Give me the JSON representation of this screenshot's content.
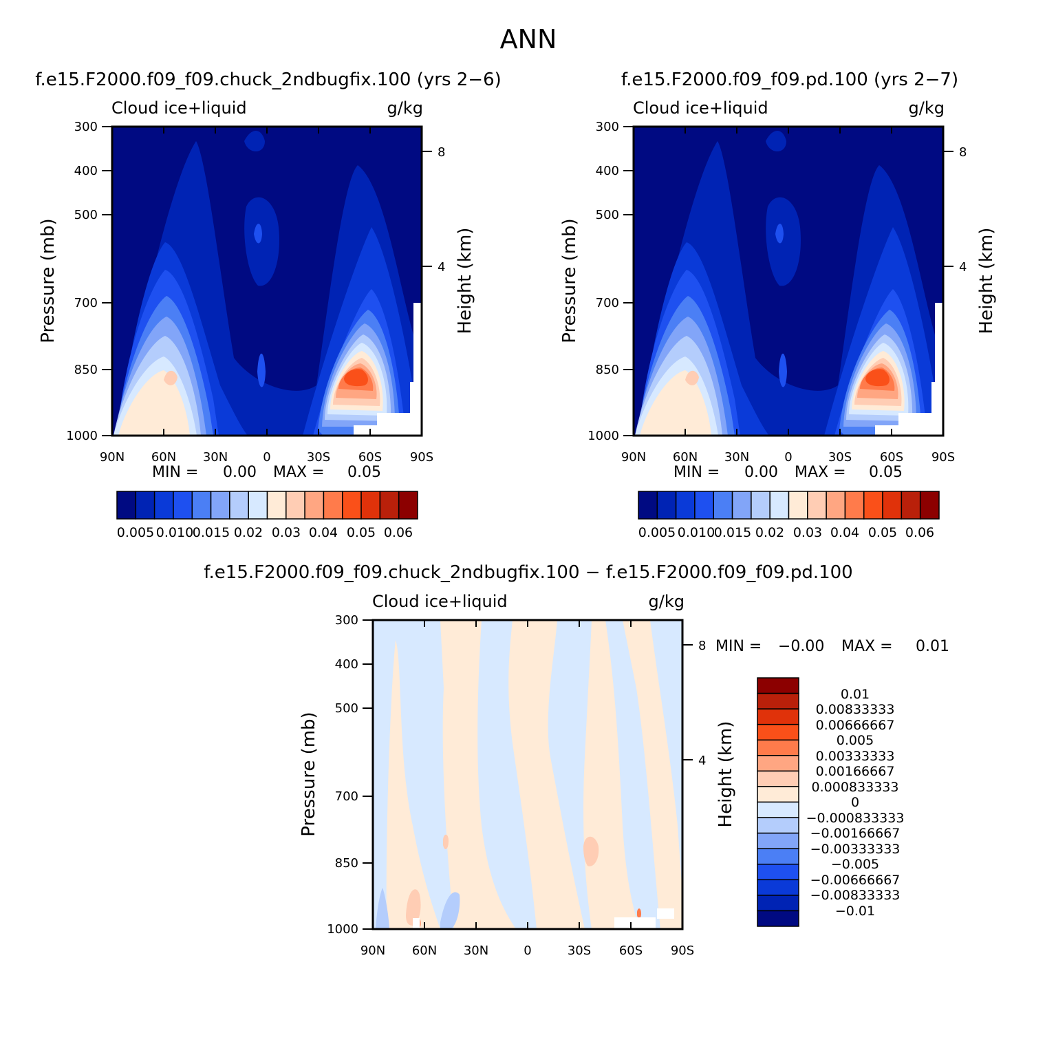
{
  "page_title": "ANN",
  "chart_data": [
    {
      "type": "heatmap",
      "id": "panel-1",
      "title": "f.e15.F2000.f09_f09.chuck_2ndbugfix.100 (yrs 2−6)",
      "variable": "Cloud ice+liquid",
      "units": "g/kg",
      "ylabel": "Pressure (mb)",
      "y2label": "Height (km)",
      "x_ticks": [
        "90N",
        "60N",
        "30N",
        "0",
        "30S",
        "60S",
        "90S"
      ],
      "x_range": [
        90,
        -90
      ],
      "y_ticks": [
        300,
        400,
        500,
        700,
        850,
        1000
      ],
      "y_range": [
        300,
        1000
      ],
      "y2_ticks": [
        8,
        4
      ],
      "min_label": "MIN =",
      "min_value": "0.00",
      "max_label": "MAX =",
      "max_value": "0.05",
      "colorbar_labels": [
        "0.005",
        "0.010",
        "0.015",
        "0.02",
        "0.03",
        "0.04",
        "0.05",
        "0.06"
      ]
    },
    {
      "type": "heatmap",
      "id": "panel-2",
      "title": "f.e15.F2000.f09_f09.pd.100 (yrs 2−7)",
      "variable": "Cloud ice+liquid",
      "units": "g/kg",
      "ylabel": "Pressure (mb)",
      "y2label": "Height (km)",
      "x_ticks": [
        "90N",
        "60N",
        "30N",
        "0",
        "30S",
        "60S",
        "90S"
      ],
      "x_range": [
        90,
        -90
      ],
      "y_ticks": [
        300,
        400,
        500,
        700,
        850,
        1000
      ],
      "y_range": [
        300,
        1000
      ],
      "y2_ticks": [
        8,
        4
      ],
      "min_label": "MIN =",
      "min_value": "0.00",
      "max_label": "MAX =",
      "max_value": "0.05",
      "colorbar_labels": [
        "0.005",
        "0.010",
        "0.015",
        "0.02",
        "0.03",
        "0.04",
        "0.05",
        "0.06"
      ]
    },
    {
      "type": "heatmap",
      "id": "panel-diff",
      "title": "f.e15.F2000.f09_f09.chuck_2ndbugfix.100 − f.e15.F2000.f09_f09.pd.100",
      "variable": "Cloud ice+liquid",
      "units": "g/kg",
      "ylabel": "Pressure (mb)",
      "y2label": "Height (km)",
      "x_ticks": [
        "90N",
        "60N",
        "30N",
        "0",
        "30S",
        "60S",
        "90S"
      ],
      "x_range": [
        90,
        -90
      ],
      "y_ticks": [
        300,
        400,
        500,
        700,
        850,
        1000
      ],
      "y_range": [
        300,
        1000
      ],
      "y2_ticks": [
        8,
        4
      ],
      "min_label": "MIN =",
      "min_value": "−0.00",
      "max_label": "MAX =",
      "max_value": "0.01",
      "colorbar_labels": [
        "0.01",
        "0.00833333",
        "0.00666667",
        "0.005",
        "0.00333333",
        "0.00166667",
        "0.000833333",
        "0",
        "−0.000833333",
        "−0.00166667",
        "−0.00333333",
        "−0.005",
        "−0.00666667",
        "−0.00833333",
        "−0.01"
      ]
    }
  ],
  "palette": [
    "#000a82",
    "#0023b4",
    "#0a3ad8",
    "#1e50f0",
    "#4b7ff5",
    "#82a5f8",
    "#b4cdfc",
    "#d7e9ff",
    "#ffebd7",
    "#ffcdb4",
    "#ffa682",
    "#ff7b4b",
    "#fa5019",
    "#e0320a",
    "#b9200a",
    "#8c0000"
  ]
}
